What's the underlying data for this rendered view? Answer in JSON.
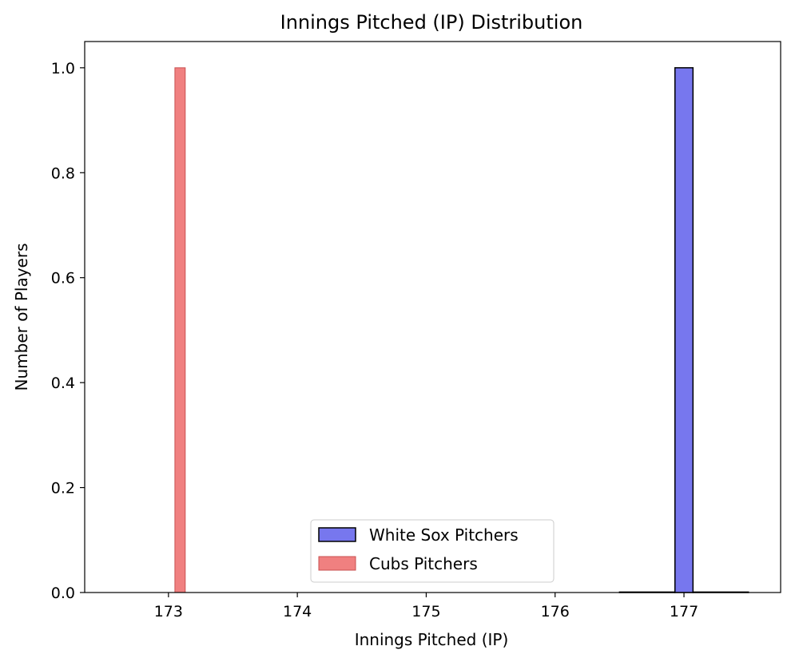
{
  "chart_data": {
    "type": "bar",
    "title": "Innings Pitched (IP) Distribution",
    "xlabel": "Innings Pitched (IP)",
    "ylabel": "Number of Players",
    "xlim": [
      172.35,
      177.75
    ],
    "ylim": [
      0,
      1.05
    ],
    "xticks": [
      "173",
      "174",
      "175",
      "176",
      "177"
    ],
    "yticks": [
      "0.0",
      "0.2",
      "0.4",
      "0.6",
      "0.8",
      "1.0"
    ],
    "grid": false,
    "legend_position": "lower center",
    "series": [
      {
        "name": "White Sox Pitchers",
        "color": "#7777ee",
        "edge_color": "#000000",
        "bins": [
          [
            176.5,
            176.93,
            0
          ],
          [
            176.93,
            177.07,
            1
          ],
          [
            177.07,
            177.5,
            0
          ]
        ]
      },
      {
        "name": "Cubs Pitchers",
        "color": "#f08080",
        "edge_color": "#c85050",
        "bins": [
          [
            173.05,
            173.13,
            1
          ]
        ]
      }
    ]
  }
}
